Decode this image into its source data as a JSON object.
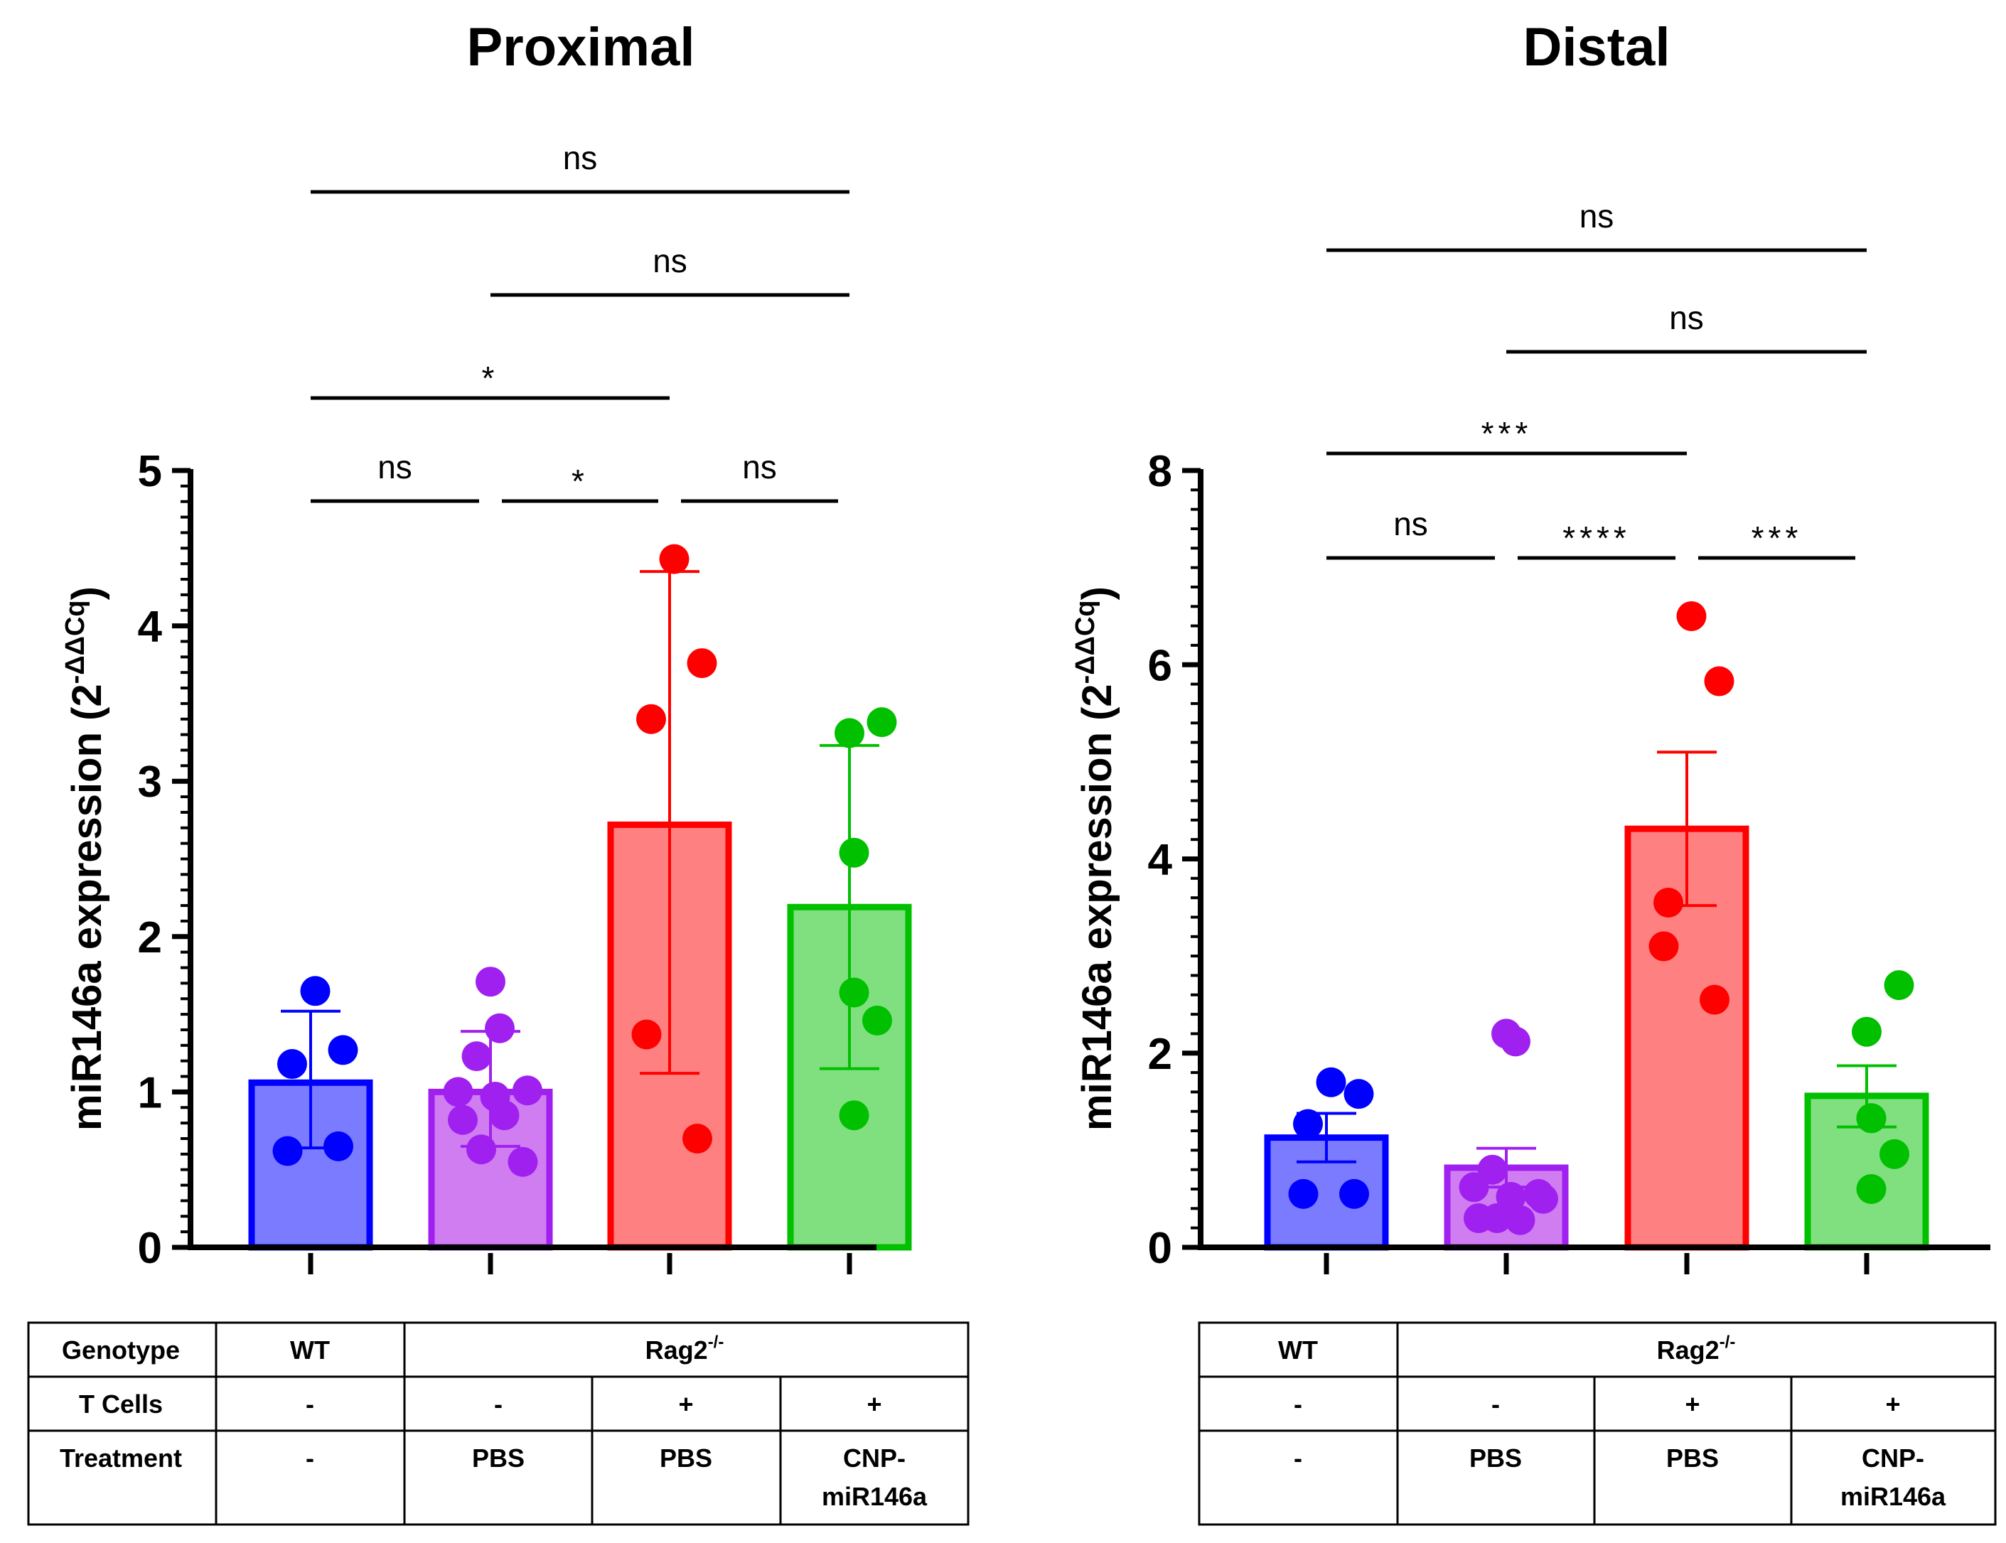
{
  "chart_data": [
    {
      "type": "bar",
      "title": "Proximal",
      "ylabel": "miR146a expression (2",
      "ylabel_sup": "-ΔΔCq",
      "ylabel_close": ")",
      "ylim": [
        0,
        5
      ],
      "yticks": [
        "0",
        "1",
        "2",
        "3",
        "4",
        "5"
      ],
      "categories": [
        "WT",
        "Rag2-/- -T PBS",
        "Rag2-/- +T PBS",
        "Rag2-/- +T CNP-miR146a"
      ],
      "series": [
        {
          "name": "WT",
          "color": "#0000ff",
          "fill": "#7b7bff",
          "mean": 1.06,
          "err_low": 0.64,
          "err_high": 1.52,
          "points": [
            1.65,
            1.27,
            1.18,
            0.62,
            0.65
          ]
        },
        {
          "name": "Rag2-/- PBS",
          "color": "#a020f0",
          "fill": "#d17df2",
          "mean": 1.0,
          "err_low": 0.65,
          "err_high": 1.39,
          "points": [
            1.71,
            1.41,
            1.23,
            1.0,
            0.97,
            1.01,
            0.82,
            0.85,
            0.63,
            0.55
          ]
        },
        {
          "name": "Rag2-/- +T PBS",
          "color": "#ff0000",
          "fill": "#ff8080",
          "mean": 2.72,
          "err_low": 1.12,
          "err_high": 4.35,
          "points": [
            4.43,
            3.76,
            3.4,
            1.37,
            0.7
          ]
        },
        {
          "name": "Rag2-/- +T CNP-miR146a",
          "color": "#00c000",
          "fill": "#80e080",
          "mean": 2.19,
          "err_low": 1.15,
          "err_high": 3.23,
          "points": [
            3.38,
            3.31,
            2.54,
            1.64,
            1.46,
            0.85
          ]
        }
      ],
      "comparisons": [
        {
          "from": 0,
          "to": 3,
          "label": "ns"
        },
        {
          "from": 1,
          "to": 3,
          "label": "ns"
        },
        {
          "from": 0,
          "to": 2,
          "label": "*"
        },
        {
          "from": 0,
          "to": 1,
          "label": "ns"
        },
        {
          "from": 1,
          "to": 2,
          "label": "*"
        },
        {
          "from": 2,
          "to": 3,
          "label": "ns"
        }
      ]
    },
    {
      "type": "bar",
      "title": "Distal",
      "ylabel": "miR146a expression (2",
      "ylabel_sup": "-ΔΔCq",
      "ylabel_close": ")",
      "ylim": [
        0,
        8
      ],
      "yticks": [
        "0",
        "2",
        "4",
        "6",
        "8"
      ],
      "categories": [
        "WT",
        "Rag2-/- -T PBS",
        "Rag2-/- +T PBS",
        "Rag2-/- +T CNP-miR146a"
      ],
      "series": [
        {
          "name": "WT",
          "color": "#0000ff",
          "fill": "#7b7bff",
          "mean": 1.13,
          "err_low": 0.88,
          "err_high": 1.38,
          "points": [
            1.7,
            1.58,
            1.27,
            0.55,
            0.55
          ]
        },
        {
          "name": "Rag2-/- PBS",
          "color": "#a020f0",
          "fill": "#d17df2",
          "mean": 0.82,
          "err_low": 0.62,
          "err_high": 1.02,
          "points": [
            2.2,
            2.12,
            0.8,
            0.62,
            0.52,
            0.5,
            0.3,
            0.28,
            0.3,
            0.55
          ]
        },
        {
          "name": "Rag2-/- +T PBS",
          "color": "#ff0000",
          "fill": "#ff8080",
          "mean": 4.31,
          "err_low": 3.52,
          "err_high": 5.1,
          "points": [
            6.5,
            5.83,
            3.55,
            3.1,
            2.55
          ]
        },
        {
          "name": "Rag2-/- +T CNP-miR146a",
          "color": "#00c000",
          "fill": "#80e080",
          "mean": 1.56,
          "err_low": 1.24,
          "err_high": 1.87,
          "points": [
            2.7,
            2.22,
            1.33,
            1.33,
            0.96,
            0.6
          ]
        }
      ],
      "comparisons": [
        {
          "from": 0,
          "to": 3,
          "label": "ns"
        },
        {
          "from": 1,
          "to": 3,
          "label": "ns"
        },
        {
          "from": 0,
          "to": 2,
          "label": "***"
        },
        {
          "from": 0,
          "to": 1,
          "label": "ns"
        },
        {
          "from": 1,
          "to": 2,
          "label": "****"
        },
        {
          "from": 2,
          "to": 3,
          "label": "***"
        }
      ]
    }
  ],
  "tables": {
    "left": {
      "row_labels": [
        "Genotype",
        "T Cells",
        "Treatment"
      ],
      "genotype_wt": "WT",
      "genotype_rag": "Rag2",
      "genotype_rag_sup": "-/-",
      "tcells": [
        "-",
        "-",
        "+",
        "+"
      ],
      "treatment": [
        "-",
        "PBS",
        "PBS",
        "CNP-",
        "miR146a"
      ]
    },
    "right": {
      "genotype_wt": "WT",
      "genotype_rag": "Rag2",
      "genotype_rag_sup": "-/-",
      "tcells": [
        "-",
        "-",
        "+",
        "+"
      ],
      "treatment": [
        "-",
        "PBS",
        "PBS",
        "CNP-",
        "miR146a"
      ]
    }
  }
}
